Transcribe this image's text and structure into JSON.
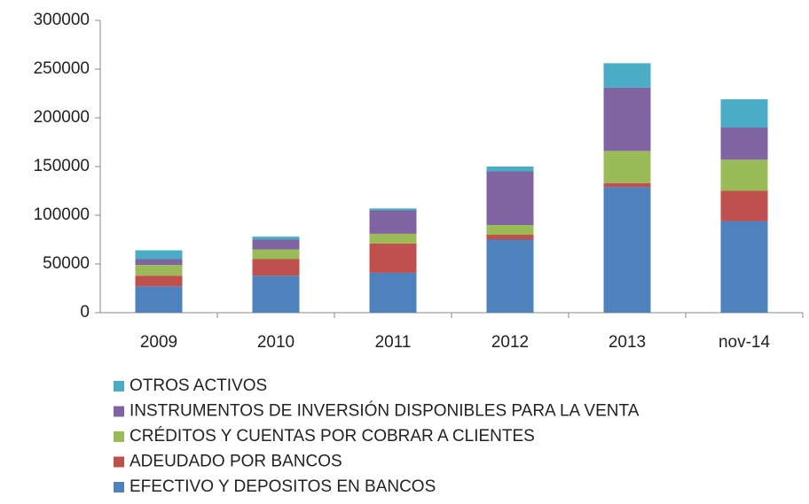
{
  "chart_data": {
    "type": "stacked_bar",
    "categories": [
      "2009",
      "2010",
      "2011",
      "2012",
      "2013",
      "nov-14"
    ],
    "series": [
      {
        "name": "EFECTIVO Y DEPOSITOS EN BANCOS",
        "color": "#4f81bd",
        "values": [
          27000,
          38000,
          41000,
          75000,
          129000,
          94000
        ]
      },
      {
        "name": "ADEUDADO POR BANCOS",
        "color": "#c0504d",
        "values": [
          11000,
          17000,
          30000,
          5000,
          4000,
          31000
        ]
      },
      {
        "name": "CRÉDITOS Y CUENTAS POR COBRAR A CLIENTES",
        "color": "#9bbb59",
        "values": [
          11000,
          10000,
          10000,
          10000,
          33000,
          32000
        ]
      },
      {
        "name": "INSTRUMENTOS DE INVERSIÓN DISPONIBLES PARA LA VENTA",
        "color": "#8064a2",
        "values": [
          6000,
          10000,
          24000,
          55000,
          65000,
          33000
        ]
      },
      {
        "name": "OTROS ACTIVOS",
        "color": "#4bacc6",
        "values": [
          9000,
          3000,
          2000,
          5000,
          25000,
          29000
        ]
      }
    ],
    "ylim": [
      0,
      300000
    ],
    "yticks": [
      0,
      50000,
      100000,
      150000,
      200000,
      250000,
      300000
    ],
    "grid": false
  }
}
